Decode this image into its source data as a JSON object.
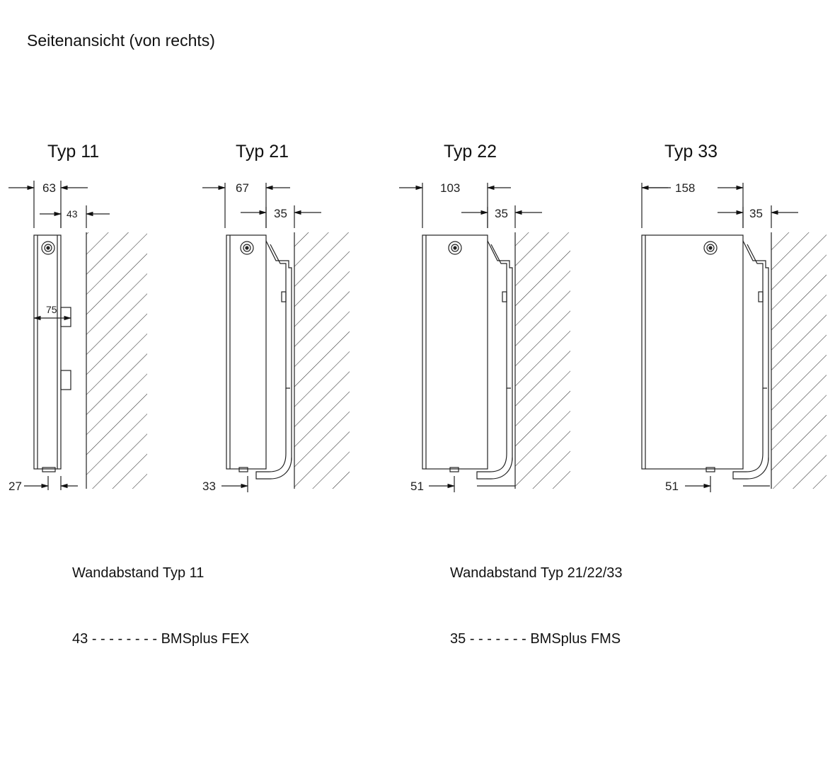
{
  "title": "Seitenansicht (von rechts)",
  "types": [
    {
      "label": "Typ 11",
      "dims": {
        "depth": "63",
        "wall": "43",
        "bottom": "27",
        "bracket": "75"
      }
    },
    {
      "label": "Typ 21",
      "dims": {
        "depth": "67",
        "wall": "35",
        "bottom": "33"
      }
    },
    {
      "label": "Typ 22",
      "dims": {
        "depth": "103",
        "wall": "35",
        "bottom": "51"
      }
    },
    {
      "label": "Typ 33",
      "dims": {
        "depth": "158",
        "wall": "35",
        "bottom": "51"
      }
    }
  ],
  "legends": [
    {
      "heading": "Wandabstand Typ 11",
      "value": "43",
      "dashes": "- - - - - - - -",
      "product": "BMSplus FEX"
    },
    {
      "heading": "Wandabstand Typ 21/22/33",
      "value": "35",
      "dashes": "- - - - - - -",
      "product": "BMSplus FMS"
    }
  ]
}
